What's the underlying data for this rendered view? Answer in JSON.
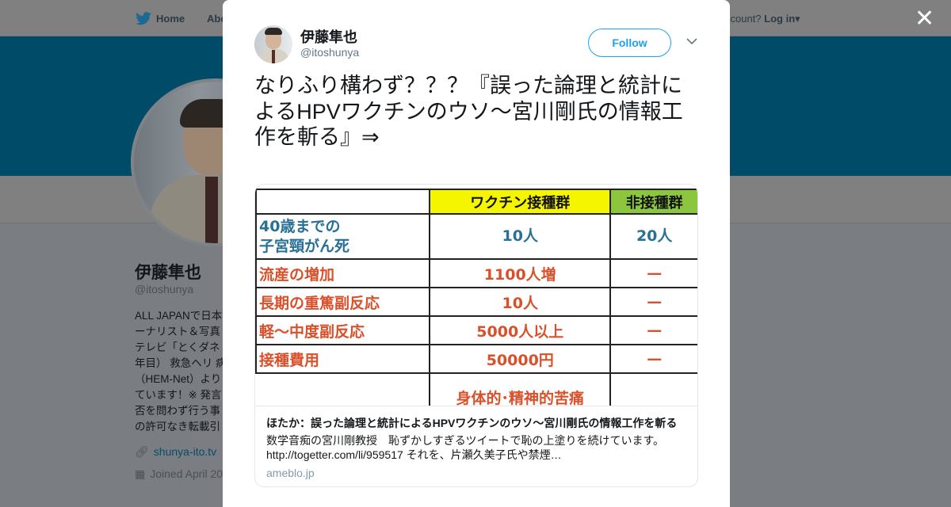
{
  "nav": {
    "home_label": "Home",
    "about_label": "Abo",
    "account_prompt": "ccount?",
    "login_label": "Log in"
  },
  "profile": {
    "name": "伊藤隼也",
    "handle": "@itoshunya",
    "bio_lines": [
      "ALL JAPANで日本",
      "ーナリスト＆写真",
      "テレビ「とくダネ",
      "年目） 救急ヘリ 病",
      "（HEM-Net）より",
      "ています！※ 発言",
      "否を問わず行う事",
      "の許可なき転載引"
    ],
    "link": "shunya-ito.tv",
    "joined": "Joined April 20"
  },
  "modal": {
    "author_name": "伊藤隼也",
    "author_handle": "@itoshunya",
    "follow_label": "Follow",
    "tweet_text": "なりふり構わず？？？『誤った論理と統計によるHPVワクチンのウソ～宮川剛氏の情報工作を斬る』⇒",
    "card": {
      "image_table": {
        "headers": [
          "",
          "ワクチン接種群",
          "非接種群"
        ],
        "header_colors": [
          "#ffffff",
          "#f5f500",
          "#8cc63f"
        ],
        "rows": [
          [
            "40歳までの\n子宮頸がん死",
            "10人",
            "20人"
          ],
          [
            "流産の増加",
            "1100人増",
            "—"
          ],
          [
            "長期の重篤副反応",
            "10人",
            "—"
          ],
          [
            "軽～中度副反応",
            "5000人以上",
            "—"
          ],
          [
            "接種費用",
            "50000円",
            "—"
          ],
          [
            "",
            "身体的･精神的苦痛",
            ""
          ]
        ]
      },
      "title": "ほたか：誤った論理と統計によるHPVワクチンのウソ～宮川剛氏の情報工作を斬る",
      "description": "数学音痴の宮川剛教授　恥ずかしすぎるツイートで恥の上塗りを続けています。http://togetter.com/li/959517 それを、片瀬久美子氏や禁煙…",
      "domain": "ameblo.jp"
    }
  },
  "colors": {
    "accent": "#1da1f2",
    "banner": "#004c68"
  }
}
